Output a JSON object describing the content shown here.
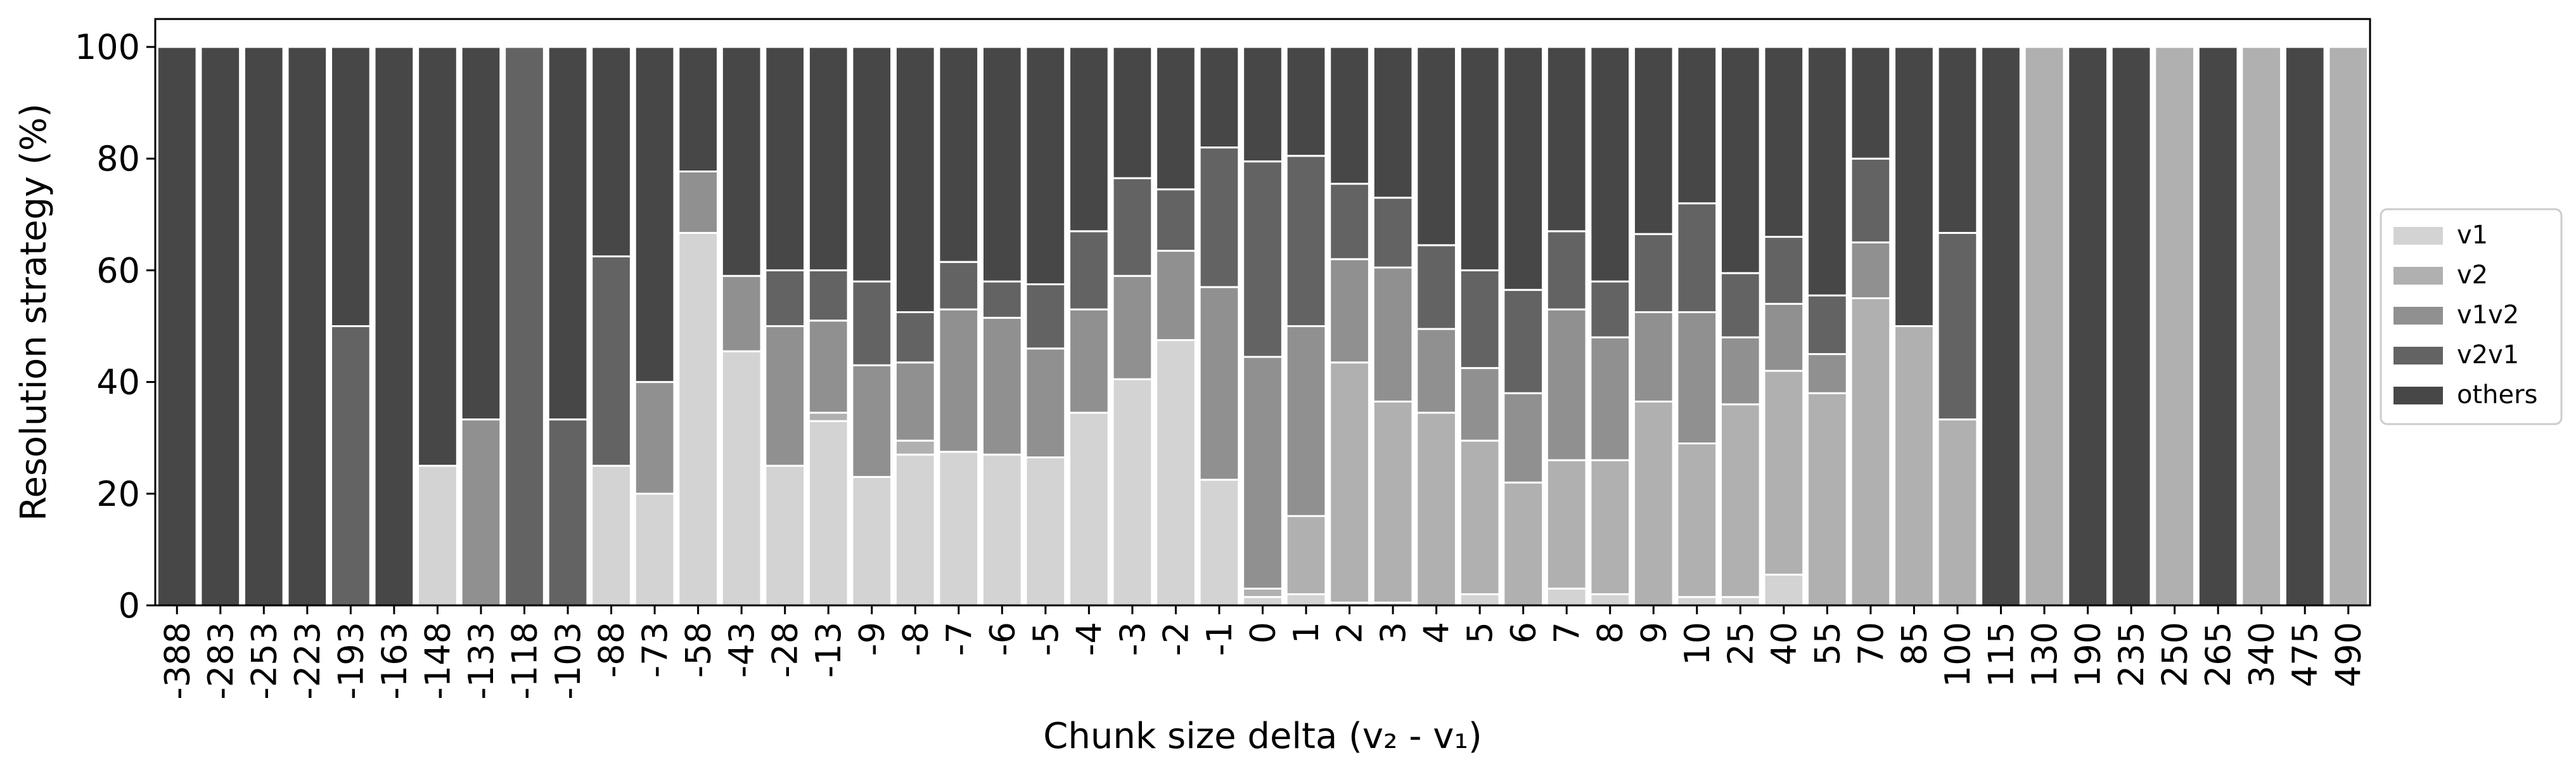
{
  "chart_data": {
    "type": "bar",
    "stacked": true,
    "xlabel": "Chunk size delta (v₂ - v₁)",
    "ylabel": "Resolution strategy (%)",
    "ylim": [
      0,
      105
    ],
    "yticks": [
      0,
      20,
      40,
      60,
      80,
      100
    ],
    "categories": [
      "-388",
      "-283",
      "-253",
      "-223",
      "-193",
      "-163",
      "-148",
      "-133",
      "-118",
      "-103",
      "-88",
      "-73",
      "-58",
      "-43",
      "-28",
      "-13",
      "-9",
      "-8",
      "-7",
      "-6",
      "-5",
      "-4",
      "-3",
      "-2",
      "-1",
      "0",
      "1",
      "2",
      "3",
      "4",
      "5",
      "6",
      "7",
      "8",
      "9",
      "10",
      "25",
      "40",
      "55",
      "70",
      "85",
      "100",
      "115",
      "130",
      "190",
      "235",
      "250",
      "265",
      "340",
      "475",
      "490"
    ],
    "legend_position": "center right, outside plot",
    "series": [
      {
        "name": "v1",
        "color": "#d3d3d3",
        "values": [
          0,
          0,
          0,
          0,
          0,
          0,
          25,
          0,
          0,
          0,
          25,
          20,
          66.7,
          45.5,
          25,
          33,
          23,
          27,
          27.5,
          27,
          26.5,
          34.5,
          40.5,
          47.5,
          22.5,
          1.5,
          2,
          0.5,
          0.5,
          0,
          2,
          0,
          3,
          2,
          0,
          1.5,
          1.5,
          5.5,
          0,
          0,
          0,
          0,
          0,
          0,
          0,
          0,
          0,
          0,
          0,
          0,
          0
        ]
      },
      {
        "name": "v2",
        "color": "#b0b0b0",
        "values": [
          0,
          0,
          0,
          0,
          0,
          0,
          0,
          0,
          0,
          0,
          0,
          0,
          0,
          0,
          0,
          1.5,
          0,
          2.5,
          0,
          0,
          0,
          0,
          0,
          0,
          0,
          1.5,
          14,
          43,
          36,
          34.5,
          27.5,
          22,
          23,
          24,
          36.5,
          27.5,
          34.5,
          36.5,
          38,
          55,
          50,
          33.3,
          0,
          100,
          0,
          0,
          100,
          0,
          100,
          0,
          100
        ]
      },
      {
        "name": "v1v2",
        "color": "#909090",
        "values": [
          0,
          0,
          0,
          0,
          0,
          0,
          0,
          33.3,
          0,
          0,
          0,
          20,
          11,
          13.5,
          25,
          16.5,
          20,
          14,
          25.5,
          24.5,
          19.5,
          18.5,
          18.5,
          16,
          34.5,
          41.5,
          34,
          18.5,
          24,
          15,
          13,
          16,
          27,
          22,
          16,
          23.5,
          12,
          12,
          7,
          10,
          0,
          0,
          0,
          0,
          0,
          0,
          0,
          0,
          0,
          0,
          0
        ]
      },
      {
        "name": "v2v1",
        "color": "#636363",
        "values": [
          0,
          0,
          0,
          0,
          50,
          0,
          0,
          0,
          100,
          33.3,
          37.5,
          0,
          0,
          0,
          10,
          9,
          15,
          9,
          8.5,
          6.5,
          11.5,
          14,
          17.5,
          11,
          25,
          35,
          30.5,
          13.5,
          12.5,
          15,
          17.5,
          18.5,
          14,
          10,
          14,
          19.5,
          11.5,
          12,
          10.5,
          15,
          0,
          33.4,
          0,
          0,
          0,
          0,
          0,
          0,
          0,
          0,
          0
        ]
      },
      {
        "name": "others",
        "color": "#474747",
        "values": [
          100,
          100,
          100,
          100,
          50,
          100,
          75,
          66.7,
          0,
          66.7,
          37.5,
          60,
          22.3,
          41,
          40,
          40,
          42,
          47.5,
          38.5,
          42,
          42.5,
          33,
          23.5,
          25.5,
          18,
          20.5,
          19.5,
          24.5,
          27,
          35.5,
          40,
          43.5,
          33,
          42,
          33.5,
          28,
          40.5,
          34,
          44.5,
          20,
          50,
          33.3,
          100,
          0,
          100,
          100,
          0,
          100,
          0,
          100,
          0
        ]
      }
    ]
  }
}
